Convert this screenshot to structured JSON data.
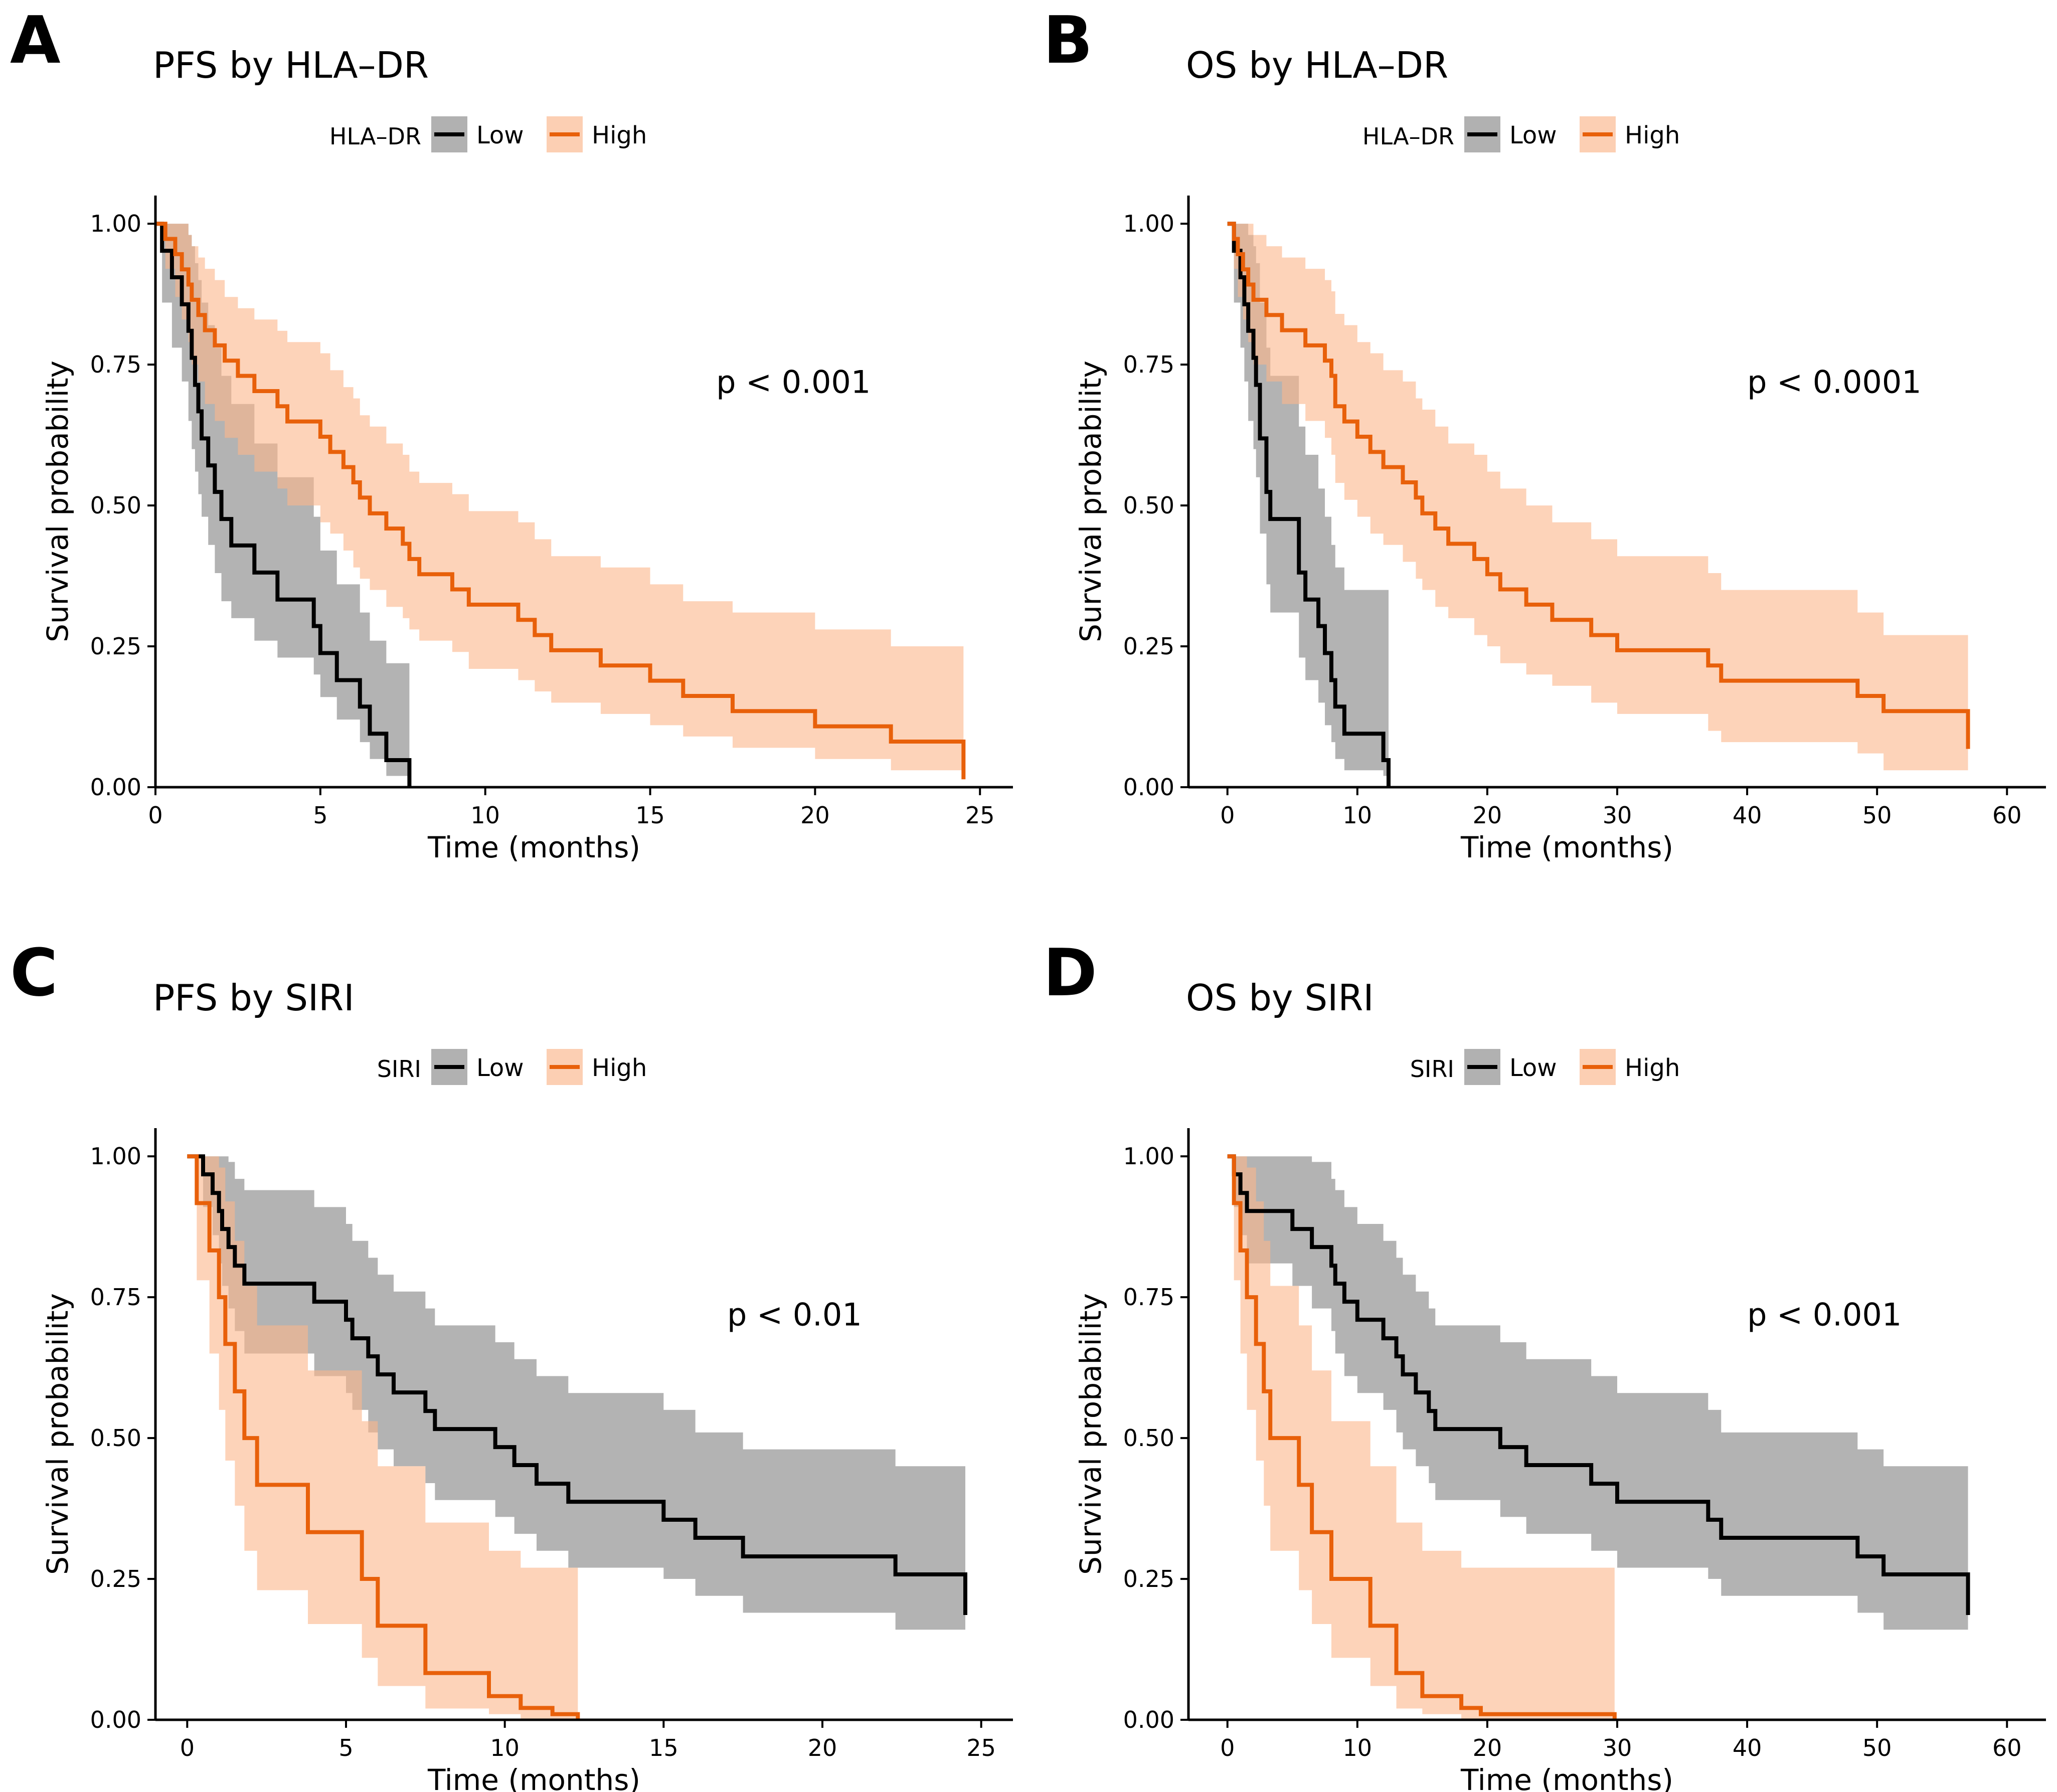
{
  "figure": {
    "palette": {
      "low": "#000000",
      "high": "#E8600A",
      "low_band": "#9E9E9E",
      "high_band": "#FBB68B"
    }
  },
  "chart_data": [
    {
      "panel": "A",
      "type": "line",
      "title": "PFS by HLA–DR",
      "legend_title": "HLA–DR",
      "legend_position": "top",
      "xlabel": "Time (months)",
      "ylabel": "Survival probability",
      "xlim": [
        0,
        26
      ],
      "ylim": [
        0,
        1.05
      ],
      "xticks": [
        0,
        5,
        10,
        15,
        20,
        25
      ],
      "yticks": [
        0.0,
        0.25,
        0.5,
        0.75,
        1.0
      ],
      "ytick_labels": [
        "0.00",
        "0.25",
        "0.50",
        "0.75",
        "1.00"
      ],
      "grid": false,
      "pvalue": "p < 0.001",
      "pvalue_pos": [
        17,
        0.7
      ],
      "series": [
        {
          "name": "Low",
          "color_key": "low",
          "band_key": "low_band",
          "x": [
            0,
            0.2,
            0.5,
            0.8,
            1.0,
            1.1,
            1.2,
            1.3,
            1.4,
            1.6,
            1.8,
            2.0,
            2.3,
            3.0,
            3.7,
            4.8,
            5.0,
            5.5,
            6.2,
            6.5,
            7.0,
            7.7
          ],
          "y": [
            1.0,
            0.952,
            0.905,
            0.857,
            0.81,
            0.762,
            0.714,
            0.667,
            0.619,
            0.571,
            0.524,
            0.476,
            0.429,
            0.381,
            0.333,
            0.286,
            0.238,
            0.19,
            0.143,
            0.095,
            0.048,
            0.0
          ],
          "lower": [
            1.0,
            0.86,
            0.78,
            0.72,
            0.65,
            0.6,
            0.56,
            0.52,
            0.48,
            0.43,
            0.38,
            0.33,
            0.3,
            0.26,
            0.23,
            0.2,
            0.16,
            0.12,
            0.08,
            0.05,
            0.02,
            0.0
          ],
          "upper": [
            1.0,
            1.0,
            1.0,
            1.0,
            0.98,
            0.96,
            0.93,
            0.9,
            0.86,
            0.82,
            0.78,
            0.73,
            0.68,
            0.61,
            0.55,
            0.48,
            0.42,
            0.36,
            0.31,
            0.26,
            0.22,
            0.22
          ]
        },
        {
          "name": "High",
          "color_key": "high",
          "band_key": "high_band",
          "x": [
            0,
            0.3,
            0.6,
            0.8,
            1.0,
            1.1,
            1.3,
            1.5,
            1.8,
            2.1,
            2.5,
            3.0,
            3.7,
            4.0,
            5.0,
            5.3,
            5.7,
            6.0,
            6.2,
            6.5,
            7.0,
            7.5,
            7.7,
            8.0,
            9.0,
            9.5,
            11.0,
            11.5,
            12.0,
            13.5,
            15.0,
            16.0,
            17.5,
            20.0,
            22.3,
            24.5
          ],
          "y": [
            1.0,
            0.973,
            0.946,
            0.919,
            0.892,
            0.865,
            0.838,
            0.811,
            0.784,
            0.757,
            0.73,
            0.703,
            0.676,
            0.649,
            0.622,
            0.595,
            0.568,
            0.541,
            0.514,
            0.486,
            0.459,
            0.432,
            0.405,
            0.378,
            0.351,
            0.324,
            0.297,
            0.27,
            0.243,
            0.216,
            0.189,
            0.162,
            0.135,
            0.108,
            0.081,
            0.054
          ],
          "lower": [
            1.0,
            0.92,
            0.87,
            0.83,
            0.79,
            0.75,
            0.72,
            0.68,
            0.65,
            0.62,
            0.59,
            0.56,
            0.53,
            0.5,
            0.47,
            0.45,
            0.42,
            0.39,
            0.37,
            0.35,
            0.32,
            0.3,
            0.28,
            0.26,
            0.24,
            0.21,
            0.19,
            0.17,
            0.15,
            0.13,
            0.11,
            0.09,
            0.07,
            0.05,
            0.03,
            0.01
          ],
          "upper": [
            1.0,
            1.0,
            1.0,
            1.0,
            0.98,
            0.96,
            0.94,
            0.92,
            0.9,
            0.87,
            0.85,
            0.83,
            0.81,
            0.79,
            0.77,
            0.74,
            0.71,
            0.69,
            0.66,
            0.64,
            0.61,
            0.59,
            0.56,
            0.54,
            0.52,
            0.49,
            0.47,
            0.44,
            0.41,
            0.39,
            0.36,
            0.33,
            0.31,
            0.28,
            0.25,
            0.25
          ]
        }
      ]
    },
    {
      "panel": "B",
      "type": "line",
      "title": "OS by HLA–DR",
      "legend_title": "HLA–DR",
      "legend_position": "top",
      "xlabel": "Time (months)",
      "ylabel": "Survival probability",
      "xlim": [
        -3,
        63
      ],
      "ylim": [
        0,
        1.05
      ],
      "xticks": [
        0,
        10,
        20,
        30,
        40,
        50,
        60
      ],
      "yticks": [
        0.0,
        0.25,
        0.5,
        0.75,
        1.0
      ],
      "ytick_labels": [
        "0.00",
        "0.25",
        "0.50",
        "0.75",
        "1.00"
      ],
      "grid": false,
      "pvalue": "p < 0.0001",
      "pvalue_pos": [
        40,
        0.7
      ],
      "series": [
        {
          "name": "Low",
          "color_key": "low",
          "band_key": "low_band",
          "x": [
            0,
            0.5,
            1.0,
            1.3,
            1.6,
            2.0,
            2.2,
            2.5,
            3.0,
            3.3,
            5.5,
            6.0,
            7.0,
            7.5,
            8.0,
            8.3,
            9.0,
            12.0,
            12.4
          ],
          "y": [
            1.0,
            0.952,
            0.905,
            0.857,
            0.81,
            0.762,
            0.714,
            0.619,
            0.524,
            0.476,
            0.381,
            0.333,
            0.286,
            0.238,
            0.19,
            0.143,
            0.095,
            0.048,
            0.0
          ],
          "lower": [
            1.0,
            0.86,
            0.78,
            0.72,
            0.65,
            0.6,
            0.55,
            0.45,
            0.36,
            0.31,
            0.23,
            0.19,
            0.15,
            0.11,
            0.08,
            0.05,
            0.03,
            0.02,
            0.0
          ],
          "upper": [
            1.0,
            1.0,
            1.0,
            1.0,
            0.98,
            0.96,
            0.93,
            0.86,
            0.78,
            0.73,
            0.64,
            0.59,
            0.53,
            0.48,
            0.43,
            0.39,
            0.35,
            0.35,
            0.35
          ]
        },
        {
          "name": "High",
          "color_key": "high",
          "band_key": "high_band",
          "x": [
            0,
            0.5,
            0.8,
            1.2,
            1.6,
            2.0,
            3.0,
            4.2,
            6.0,
            7.5,
            8.0,
            8.3,
            9.0,
            10.0,
            11.0,
            12.0,
            13.5,
            14.5,
            15.0,
            16.0,
            17.0,
            19.0,
            20.0,
            21.0,
            23.0,
            25.0,
            28.0,
            30.0,
            37.0,
            38.0,
            48.5,
            50.5,
            57.0
          ],
          "y": [
            1.0,
            0.973,
            0.946,
            0.919,
            0.892,
            0.865,
            0.838,
            0.811,
            0.784,
            0.757,
            0.73,
            0.676,
            0.649,
            0.622,
            0.595,
            0.568,
            0.541,
            0.514,
            0.486,
            0.459,
            0.432,
            0.405,
            0.378,
            0.351,
            0.324,
            0.297,
            0.27,
            0.243,
            0.216,
            0.189,
            0.162,
            0.135,
            0.108
          ],
          "lower": [
            1.0,
            0.92,
            0.87,
            0.83,
            0.79,
            0.75,
            0.72,
            0.68,
            0.65,
            0.62,
            0.59,
            0.54,
            0.51,
            0.48,
            0.45,
            0.43,
            0.4,
            0.37,
            0.35,
            0.32,
            0.3,
            0.27,
            0.25,
            0.22,
            0.2,
            0.18,
            0.15,
            0.13,
            0.1,
            0.08,
            0.06,
            0.03,
            0.01
          ],
          "upper": [
            1.0,
            1.0,
            1.0,
            1.0,
            1.0,
            0.98,
            0.96,
            0.94,
            0.92,
            0.9,
            0.88,
            0.84,
            0.82,
            0.79,
            0.77,
            0.74,
            0.72,
            0.69,
            0.67,
            0.64,
            0.61,
            0.59,
            0.56,
            0.53,
            0.5,
            0.47,
            0.44,
            0.41,
            0.38,
            0.35,
            0.31,
            0.27,
            0.27
          ]
        }
      ]
    },
    {
      "panel": "C",
      "type": "line",
      "title": "PFS by SIRI",
      "legend_title": "SIRI",
      "legend_position": "top",
      "xlabel": "Time (months)",
      "ylabel": "Survival probability",
      "xlim": [
        -1,
        26
      ],
      "ylim": [
        0,
        1.05
      ],
      "xticks": [
        0,
        5,
        10,
        15,
        20,
        25
      ],
      "yticks": [
        0.0,
        0.25,
        0.5,
        0.75,
        1.0
      ],
      "ytick_labels": [
        "0.00",
        "0.25",
        "0.50",
        "0.75",
        "1.00"
      ],
      "grid": false,
      "pvalue": "p < 0.01",
      "pvalue_pos": [
        17,
        0.7
      ],
      "series": [
        {
          "name": "Low",
          "color_key": "low",
          "band_key": "low_band",
          "x": [
            0,
            0.5,
            0.8,
            1.0,
            1.1,
            1.3,
            1.5,
            1.8,
            4.0,
            5.0,
            5.2,
            5.7,
            6.0,
            6.5,
            7.5,
            7.8,
            9.7,
            10.3,
            11.0,
            12.0,
            15.0,
            16.0,
            17.5,
            22.3,
            24.5
          ],
          "y": [
            1.0,
            0.968,
            0.935,
            0.903,
            0.871,
            0.839,
            0.806,
            0.774,
            0.742,
            0.71,
            0.677,
            0.645,
            0.613,
            0.581,
            0.548,
            0.516,
            0.484,
            0.452,
            0.419,
            0.387,
            0.355,
            0.323,
            0.29,
            0.258,
            0.226
          ],
          "lower": [
            1.0,
            0.91,
            0.86,
            0.81,
            0.77,
            0.73,
            0.69,
            0.65,
            0.61,
            0.58,
            0.55,
            0.51,
            0.48,
            0.45,
            0.42,
            0.39,
            0.36,
            0.33,
            0.3,
            0.27,
            0.25,
            0.22,
            0.19,
            0.16,
            0.14
          ],
          "upper": [
            1.0,
            1.0,
            1.0,
            1.0,
            1.0,
            0.99,
            0.96,
            0.94,
            0.91,
            0.88,
            0.85,
            0.82,
            0.79,
            0.76,
            0.73,
            0.7,
            0.67,
            0.64,
            0.61,
            0.58,
            0.55,
            0.51,
            0.48,
            0.45,
            0.45
          ]
        },
        {
          "name": "High",
          "color_key": "high",
          "band_key": "high_band",
          "x": [
            0,
            0.3,
            0.7,
            1.0,
            1.2,
            1.5,
            1.8,
            2.2,
            3.8,
            5.5,
            6.0,
            7.5,
            9.5,
            10.5,
            11.5,
            12.3
          ],
          "y": [
            1.0,
            0.917,
            0.833,
            0.75,
            0.667,
            0.583,
            0.5,
            0.417,
            0.333,
            0.25,
            0.167,
            0.083,
            0.042,
            0.021,
            0.01,
            0.0
          ],
          "lower": [
            1.0,
            0.78,
            0.65,
            0.55,
            0.46,
            0.38,
            0.3,
            0.23,
            0.17,
            0.11,
            0.06,
            0.02,
            0.01,
            0.0,
            0.0,
            0.0
          ],
          "upper": [
            1.0,
            1.0,
            1.0,
            0.98,
            0.92,
            0.85,
            0.77,
            0.7,
            0.62,
            0.53,
            0.45,
            0.35,
            0.3,
            0.27,
            0.27,
            0.27
          ]
        }
      ]
    },
    {
      "panel": "D",
      "type": "line",
      "title": "OS by SIRI",
      "legend_title": "SIRI",
      "legend_position": "top",
      "xlabel": "Time (months)",
      "ylabel": "Survival probability",
      "xlim": [
        -3,
        63
      ],
      "ylim": [
        0,
        1.05
      ],
      "xticks": [
        0,
        10,
        20,
        30,
        40,
        50,
        60
      ],
      "yticks": [
        0.0,
        0.25,
        0.5,
        0.75,
        1.0
      ],
      "ytick_labels": [
        "0.00",
        "0.25",
        "0.50",
        "0.75",
        "1.00"
      ],
      "grid": false,
      "pvalue": "p < 0.001",
      "pvalue_pos": [
        40,
        0.7
      ],
      "series": [
        {
          "name": "Low",
          "color_key": "low",
          "band_key": "low_band",
          "x": [
            0,
            0.5,
            1.0,
            1.5,
            5.0,
            6.5,
            8.0,
            8.3,
            9.0,
            10.0,
            12.0,
            13.0,
            13.5,
            14.5,
            15.5,
            16.0,
            21.0,
            23.0,
            28.0,
            30.0,
            37.0,
            38.0,
            48.5,
            50.5,
            57.0
          ],
          "y": [
            1.0,
            0.968,
            0.935,
            0.903,
            0.871,
            0.839,
            0.806,
            0.774,
            0.742,
            0.71,
            0.677,
            0.645,
            0.613,
            0.581,
            0.548,
            0.516,
            0.484,
            0.452,
            0.419,
            0.387,
            0.355,
            0.323,
            0.29,
            0.258,
            0.226
          ],
          "lower": [
            1.0,
            0.91,
            0.86,
            0.81,
            0.77,
            0.73,
            0.69,
            0.65,
            0.61,
            0.58,
            0.55,
            0.51,
            0.48,
            0.45,
            0.42,
            0.39,
            0.36,
            0.33,
            0.3,
            0.27,
            0.25,
            0.22,
            0.19,
            0.16,
            0.14
          ],
          "upper": [
            1.0,
            1.0,
            1.0,
            1.0,
            1.0,
            0.99,
            0.96,
            0.94,
            0.91,
            0.88,
            0.85,
            0.82,
            0.79,
            0.76,
            0.73,
            0.7,
            0.67,
            0.64,
            0.61,
            0.58,
            0.55,
            0.51,
            0.48,
            0.45,
            0.45
          ]
        },
        {
          "name": "High",
          "color_key": "high",
          "band_key": "high_band",
          "x": [
            0,
            0.5,
            1.0,
            1.5,
            2.2,
            2.8,
            3.3,
            5.5,
            6.5,
            8.0,
            11.0,
            13.0,
            15.0,
            18.0,
            19.5,
            29.8
          ],
          "y": [
            1.0,
            0.917,
            0.833,
            0.75,
            0.667,
            0.583,
            0.5,
            0.417,
            0.333,
            0.25,
            0.167,
            0.083,
            0.042,
            0.021,
            0.01,
            0.0
          ],
          "lower": [
            1.0,
            0.78,
            0.65,
            0.55,
            0.46,
            0.38,
            0.3,
            0.23,
            0.17,
            0.11,
            0.06,
            0.02,
            0.01,
            0.0,
            0.0,
            0.0
          ],
          "upper": [
            1.0,
            1.0,
            1.0,
            0.98,
            0.92,
            0.85,
            0.77,
            0.7,
            0.62,
            0.53,
            0.45,
            0.35,
            0.3,
            0.27,
            0.27,
            0.27
          ]
        }
      ]
    }
  ]
}
